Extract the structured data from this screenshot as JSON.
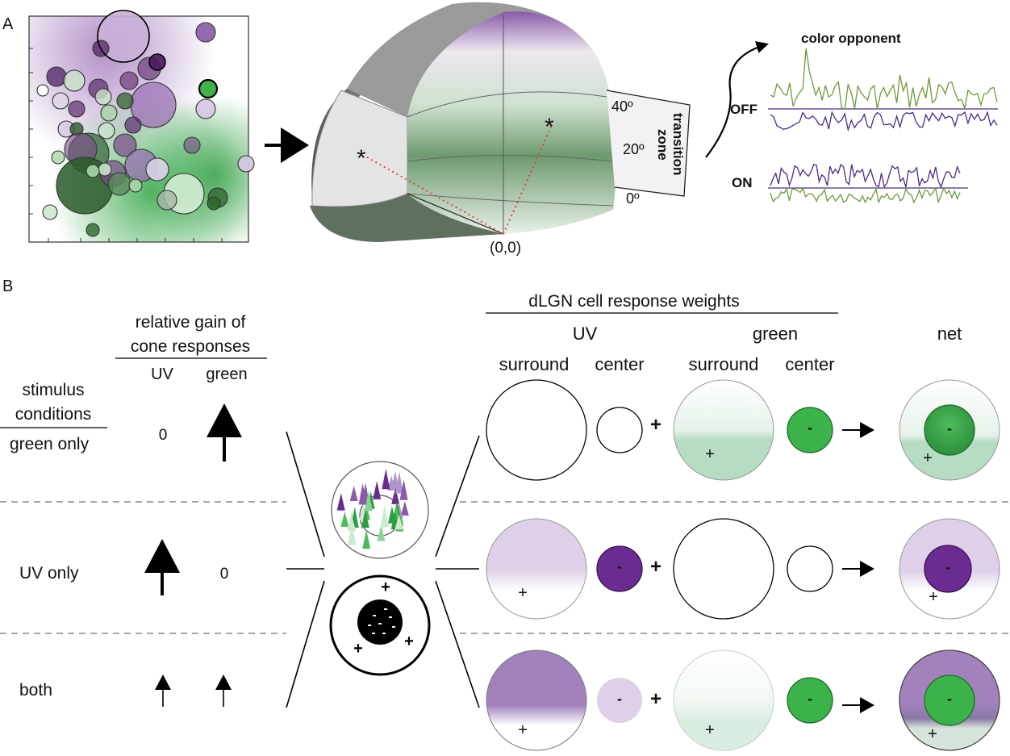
{
  "panel_a": {
    "label": "A",
    "degree_labels": [
      "40º",
      "20º",
      "0º"
    ],
    "transition_zone": [
      "transition",
      "zone"
    ],
    "origin_label": "(0,0)",
    "traces_title": "color opponent",
    "trace_off_label": "OFF",
    "trace_on_label": "ON"
  },
  "panel_b": {
    "label": "B",
    "gain_header": [
      "relative gain of",
      "cone responses"
    ],
    "gain_uv": "UV",
    "gain_green": "green",
    "stimulus_header": [
      "stimulus",
      "conditions"
    ],
    "dlgn_header": "dLGN cell response weights",
    "group_uv": "UV",
    "group_green": "green",
    "col_surround": "surround",
    "col_center": "center",
    "col_net": "net",
    "plus": "+",
    "minus": "-",
    "rows": [
      {
        "condition": "green only",
        "uv_gain": "0",
        "green_gain": ""
      },
      {
        "condition": "UV only",
        "uv_gain": "",
        "green_gain": "0"
      },
      {
        "condition": "both",
        "uv_gain": "",
        "green_gain": ""
      }
    ]
  },
  "colors": {
    "uv": "#6a2c91",
    "uv_light": "#ddd0e8",
    "uv_mid": "#a282bd",
    "green": "#3bb34a",
    "green_light": "#c6e6d2",
    "green_dark": "#1f6a2a",
    "trace_green": "#6b9a3a",
    "trace_purple": "#4b2a84"
  }
}
